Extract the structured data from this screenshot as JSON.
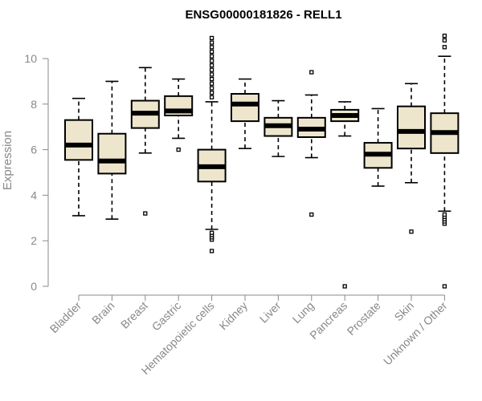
{
  "chart_data": {
    "type": "box",
    "title": "ENSG00000181826 - RELL1",
    "ylabel": "Expression",
    "xlabel": "",
    "ylim": [
      0,
      11
    ],
    "yticks": [
      0,
      2,
      4,
      6,
      8,
      10
    ],
    "box_color": "#ede6cd",
    "categories": [
      "Bladder",
      "Brain",
      "Breast",
      "Gastric",
      "Hematopoietic cells",
      "Kidney",
      "Liver",
      "Lung",
      "Pancreas",
      "Prostate",
      "Skin",
      "Unknown / Other"
    ],
    "boxes": [
      {
        "category": "Bladder",
        "whisker_low": 3.1,
        "q1": 5.55,
        "median": 6.2,
        "q3": 7.3,
        "whisker_high": 8.25,
        "outliers": []
      },
      {
        "category": "Brain",
        "whisker_low": 2.95,
        "q1": 4.95,
        "median": 5.5,
        "q3": 6.7,
        "whisker_high": 9.0,
        "outliers": []
      },
      {
        "category": "Breast",
        "whisker_low": 5.85,
        "q1": 6.95,
        "median": 7.6,
        "q3": 8.15,
        "whisker_high": 9.6,
        "outliers": [
          3.2
        ]
      },
      {
        "category": "Gastric",
        "whisker_low": 6.5,
        "q1": 7.5,
        "median": 7.7,
        "q3": 8.35,
        "whisker_high": 9.1,
        "outliers": [
          6.0
        ]
      },
      {
        "category": "Hematopoietic cells",
        "whisker_low": 2.5,
        "q1": 4.6,
        "median": 5.25,
        "q3": 6.0,
        "whisker_high": 8.1,
        "outliers": [
          1.55,
          2.05,
          2.15,
          2.25,
          2.35,
          8.3,
          8.5,
          8.7,
          8.9,
          9.1,
          9.3,
          9.5,
          9.7,
          9.9,
          10.1,
          10.3,
          10.5,
          10.7,
          10.9
        ]
      },
      {
        "category": "Kidney",
        "whisker_low": 6.05,
        "q1": 7.25,
        "median": 8.0,
        "q3": 8.45,
        "whisker_high": 9.1,
        "outliers": []
      },
      {
        "category": "Liver",
        "whisker_low": 5.7,
        "q1": 6.6,
        "median": 7.05,
        "q3": 7.4,
        "whisker_high": 8.15,
        "outliers": []
      },
      {
        "category": "Lung",
        "whisker_low": 5.65,
        "q1": 6.55,
        "median": 6.9,
        "q3": 7.4,
        "whisker_high": 8.4,
        "outliers": [
          3.15,
          9.4
        ]
      },
      {
        "category": "Pancreas",
        "whisker_low": 6.6,
        "q1": 7.25,
        "median": 7.5,
        "q3": 7.75,
        "whisker_high": 8.1,
        "outliers": [
          0.0
        ]
      },
      {
        "category": "Prostate",
        "whisker_low": 4.4,
        "q1": 5.2,
        "median": 5.8,
        "q3": 6.3,
        "whisker_high": 7.8,
        "outliers": []
      },
      {
        "category": "Skin",
        "whisker_low": 4.55,
        "q1": 6.05,
        "median": 6.8,
        "q3": 7.9,
        "whisker_high": 8.9,
        "outliers": [
          2.4
        ]
      },
      {
        "category": "Unknown / Other",
        "whisker_low": 3.3,
        "q1": 5.85,
        "median": 6.75,
        "q3": 7.6,
        "whisker_high": 10.1,
        "outliers": [
          0.0,
          2.75,
          2.85,
          2.95,
          3.05,
          3.15,
          10.5,
          10.8,
          11.0
        ]
      }
    ]
  }
}
